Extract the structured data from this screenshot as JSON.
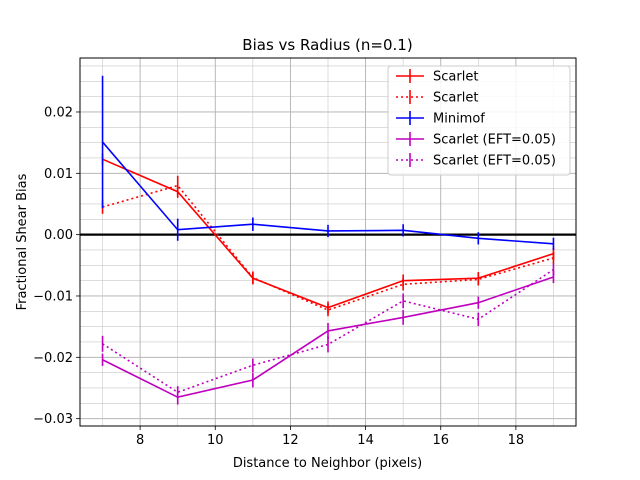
{
  "chart_data": {
    "type": "line",
    "title": "Bias vs Radius (n=0.1)",
    "xlabel": "Distance to Neighbor (pixels)",
    "ylabel": "Fractional Shear Bias",
    "xlim": [
      6.4,
      19.6
    ],
    "ylim": [
      -0.0312,
      0.0288
    ],
    "xticks": [
      8,
      10,
      12,
      14,
      16,
      18
    ],
    "xtick_labels": [
      "8",
      "10",
      "12",
      "14",
      "16",
      "18"
    ],
    "yticks": [
      -0.03,
      -0.02,
      -0.01,
      0.0,
      0.01,
      0.02
    ],
    "ytick_labels": [
      "−0.03",
      "−0.02",
      "−0.01",
      "0.00",
      "0.01",
      "0.02"
    ],
    "grid": true,
    "minor_grid_y_step": 0.0025,
    "reference_line_y": 0.0,
    "legend_position": "upper right",
    "x": [
      7,
      9,
      11,
      13,
      15,
      17,
      19
    ],
    "series": [
      {
        "name": "Scarlet",
        "color": "#ff0000",
        "linestyle": "solid",
        "y": [
          0.0123,
          0.007,
          -0.0071,
          -0.0119,
          -0.0075,
          -0.0071,
          -0.0031
        ],
        "yerr": [
          0.0009,
          0.001,
          0.001,
          0.001,
          0.001,
          0.001,
          0.001
        ]
      },
      {
        "name": "Scarlet",
        "color": "#ff0000",
        "linestyle": "dotted",
        "y": [
          0.0045,
          0.008,
          -0.007,
          -0.0123,
          -0.0081,
          -0.0073,
          -0.0038
        ],
        "yerr": [
          0.0011,
          0.0016,
          0.001,
          0.001,
          0.001,
          0.001,
          0.001
        ]
      },
      {
        "name": "Minimof",
        "color": "#0000ff",
        "linestyle": "solid",
        "y": [
          0.0151,
          0.0008,
          0.0017,
          0.0006,
          0.0007,
          -0.0006,
          -0.0015
        ],
        "yerr": [
          0.0108,
          0.0018,
          0.0011,
          0.001,
          0.001,
          0.001,
          0.001
        ]
      },
      {
        "name": "Scarlet (EFT=0.05)",
        "color": "#bf00bf",
        "linestyle": "solid",
        "y": [
          -0.0204,
          -0.0265,
          -0.0237,
          -0.0157,
          -0.0135,
          -0.0111,
          -0.0069
        ],
        "yerr": [
          0.001,
          0.0012,
          0.0012,
          0.0013,
          0.0012,
          0.001,
          0.001
        ]
      },
      {
        "name": "Scarlet (EFT=0.05)",
        "color": "#bf00bf",
        "linestyle": "dotted",
        "y": [
          -0.0178,
          -0.0257,
          -0.0213,
          -0.0179,
          -0.0108,
          -0.0138,
          -0.0057
        ],
        "yerr": [
          0.0013,
          0.001,
          0.0011,
          0.0013,
          0.0012,
          0.0011,
          0.001
        ]
      }
    ]
  }
}
